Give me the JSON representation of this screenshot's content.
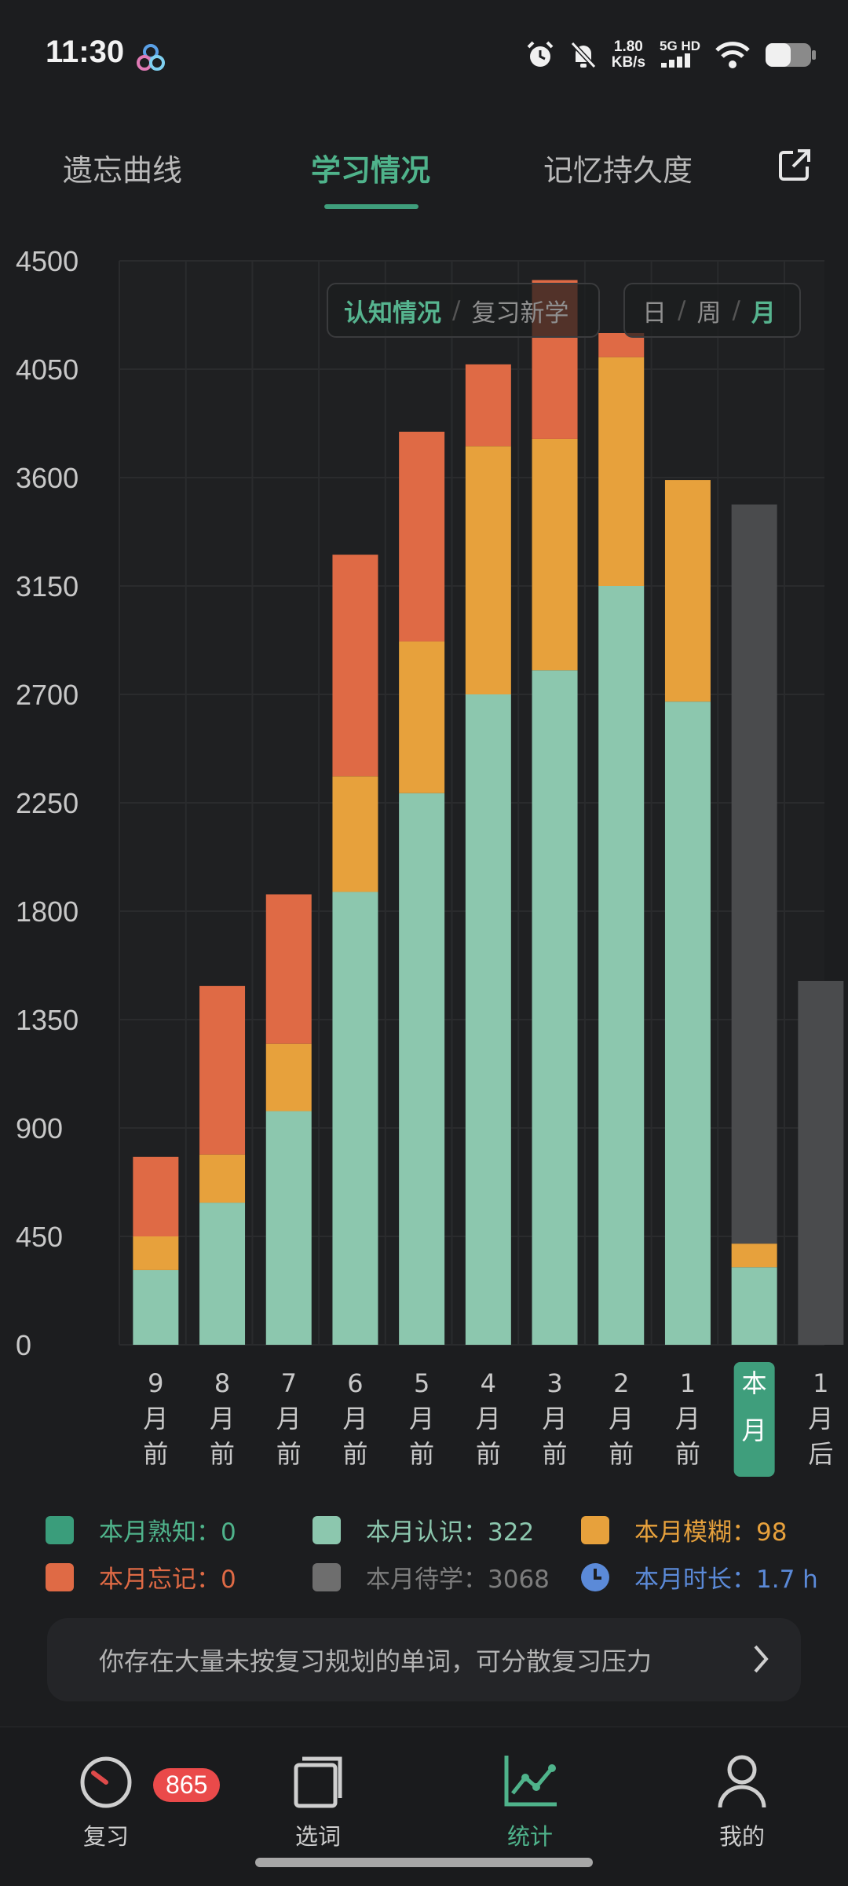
{
  "status_bar": {
    "time": "11:30",
    "speed_value": "1.80",
    "speed_unit": "KB/s",
    "network": "5G HD"
  },
  "tabs": [
    {
      "label": "遗忘曲线",
      "active": false
    },
    {
      "label": "学习情况",
      "active": true
    },
    {
      "label": "记忆持久度",
      "active": false
    }
  ],
  "toggle_mode": {
    "options": [
      "认知情况",
      "复习新学"
    ],
    "selected": "认知情况"
  },
  "toggle_period": {
    "options": [
      "日",
      "周",
      "月"
    ],
    "selected": "月"
  },
  "chart_data": {
    "type": "bar",
    "stacked": true,
    "categories": [
      "9月前",
      "8月前",
      "7月前",
      "6月前",
      "5月前",
      "4月前",
      "3月前",
      "2月前",
      "1月前",
      "本月",
      "1月后"
    ],
    "category_display": [
      [
        "9",
        "月",
        "前"
      ],
      [
        "8",
        "月",
        "前"
      ],
      [
        "7",
        "月",
        "前"
      ],
      [
        "6",
        "月",
        "前"
      ],
      [
        "5",
        "月",
        "前"
      ],
      [
        "4",
        "月",
        "前"
      ],
      [
        "3",
        "月",
        "前"
      ],
      [
        "2",
        "月",
        "前"
      ],
      [
        "1",
        "月",
        "前"
      ],
      [
        "本",
        "月"
      ],
      [
        "1",
        "月",
        "后"
      ]
    ],
    "highlighted_category": "本月",
    "yticks": [
      0,
      450,
      900,
      1350,
      1800,
      2250,
      2700,
      3150,
      3600,
      4050,
      4500
    ],
    "ylim": [
      0,
      4500
    ],
    "grid": true,
    "series": [
      {
        "name": "本月认识",
        "color": "#8cc7ae",
        "values": [
          310,
          590,
          970,
          1880,
          2290,
          2700,
          2800,
          3150,
          2670,
          322,
          0
        ]
      },
      {
        "name": "本月模糊",
        "color": "#e7a13c",
        "values": [
          140,
          200,
          280,
          480,
          630,
          1030,
          960,
          950,
          920,
          98,
          0
        ]
      },
      {
        "name": "本月忘记",
        "color": "#df6a45",
        "values": [
          330,
          700,
          620,
          920,
          870,
          340,
          660,
          100,
          0,
          0,
          0
        ]
      },
      {
        "name": "本月待学",
        "color": "#4a4b4d",
        "values": [
          0,
          0,
          0,
          0,
          0,
          0,
          0,
          0,
          0,
          3068,
          1510
        ]
      }
    ]
  },
  "legend": [
    {
      "label": "本月熟知：0",
      "color": "#3a9d7b",
      "text_color": "#4fb38b"
    },
    {
      "label": "本月认识：322",
      "color": "#8cc7ae",
      "text_color": "#8cc7ae"
    },
    {
      "label": "本月模糊：98",
      "color": "#e7a13c",
      "text_color": "#e7a13c"
    },
    {
      "label": "本月忘记：0",
      "color": "#df6a45",
      "text_color": "#df6a45"
    },
    {
      "label": "本月待学：3068",
      "color": "#6e6e6e",
      "text_color": "#7d7d7d"
    },
    {
      "label": "本月时长：1.7 h",
      "icon": "clock-icon",
      "text_color": "#5b8ad8"
    }
  ],
  "tip": {
    "text": "你存在大量未按复习规划的单词，可分散复习压力"
  },
  "nav": [
    {
      "label": "复习",
      "badge": "865",
      "icon": "speedometer-icon",
      "active": false
    },
    {
      "label": "选词",
      "icon": "cards-icon",
      "active": false
    },
    {
      "label": "统计",
      "icon": "chart-icon",
      "active": true
    },
    {
      "label": "我的",
      "icon": "person-icon",
      "active": false
    }
  ]
}
